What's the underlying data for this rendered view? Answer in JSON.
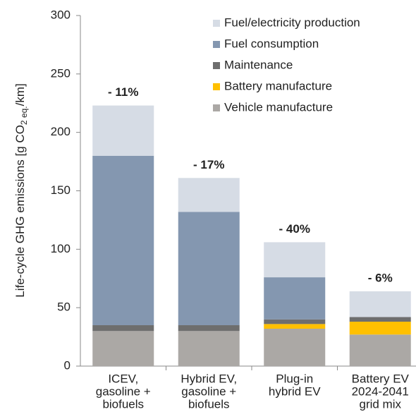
{
  "chart_data": {
    "type": "stacked_bar",
    "ylabel": [
      "Life-cycle GHG emissions [g CO",
      "2 eq.",
      "/km]"
    ],
    "categories": [
      [
        "ICEV,",
        "gasoline +",
        "biofuels"
      ],
      [
        "Hybrid EV,",
        "gasoline +",
        "biofuels"
      ],
      [
        "Plug-in",
        "hybrid EV"
      ],
      [
        "Battery EV",
        "2024-2041",
        "grid mix"
      ]
    ],
    "series": [
      {
        "name": "Vehicle manufacture",
        "color": "#aba8a5",
        "values": [
          30,
          30,
          32,
          27
        ]
      },
      {
        "name": "Battery manufacture",
        "color": "#ffc000",
        "values": [
          0,
          0,
          4,
          11
        ]
      },
      {
        "name": "Maintenance",
        "color": "#6e6e6e",
        "values": [
          5,
          5,
          4,
          4
        ]
      },
      {
        "name": "Fuel consumption",
        "color": "#8497b0",
        "values": [
          145,
          97,
          36,
          0
        ]
      },
      {
        "name": "Fuel/electricity production",
        "color": "#d6dce5",
        "values": [
          43,
          29,
          30,
          22
        ]
      }
    ],
    "annotations": [
      {
        "text": "- 11%",
        "color": "#1f8296"
      },
      {
        "text": "- 17%",
        "color": "#c00000"
      },
      {
        "text": "- 40%",
        "color": "#c00000"
      },
      {
        "text": "- 6%",
        "color": "#1f8296"
      }
    ],
    "ylim": [
      0,
      300
    ],
    "yticks": [
      0,
      50,
      100,
      150,
      200,
      250,
      300
    ],
    "grid": false
  }
}
